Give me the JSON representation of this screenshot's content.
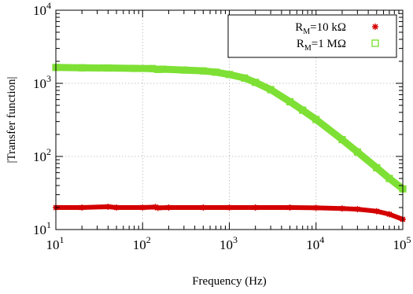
{
  "chart_data": {
    "type": "scatter",
    "xlabel": "Frequency (Hz)",
    "ylabel": "|Transfer function|",
    "xscale": "log",
    "yscale": "log",
    "xlim": [
      10,
      100000
    ],
    "ylim": [
      10,
      10000
    ],
    "grid": true,
    "legend_position": "top-right",
    "x_ticks": [
      {
        "base": "10",
        "exp": "1"
      },
      {
        "base": "10",
        "exp": "2"
      },
      {
        "base": "10",
        "exp": "3"
      },
      {
        "base": "10",
        "exp": "4"
      },
      {
        "base": "10",
        "exp": "5"
      }
    ],
    "y_ticks": [
      {
        "base": "10",
        "exp": "1"
      },
      {
        "base": "10",
        "exp": "2"
      },
      {
        "base": "10",
        "exp": "3"
      },
      {
        "base": "10",
        "exp": "4"
      }
    ],
    "series": [
      {
        "name_main": "R",
        "name_sub": "M",
        "name_rest": "=10 kΩ",
        "color": "#d40000",
        "marker": "asterisk",
        "x": [
          10,
          20,
          40,
          50,
          100,
          140,
          150,
          200,
          500,
          1000,
          2000,
          5000,
          10000,
          20000,
          30000,
          50000,
          70000,
          100000
        ],
        "y": [
          20,
          20,
          20.5,
          20,
          20,
          20.3,
          19.8,
          20,
          20,
          20,
          20,
          20,
          19.8,
          19.4,
          19,
          17.8,
          16.2,
          13.8
        ]
      },
      {
        "name_main": "R",
        "name_sub": "M",
        "name_rest": "=1 MΩ",
        "color": "#7ee035",
        "marker": "square",
        "x": [
          10,
          20,
          40,
          80,
          130,
          150,
          170,
          300,
          500,
          700,
          1000,
          1500,
          2000,
          3000,
          5000,
          7000,
          10000,
          20000,
          30000,
          50000,
          70000,
          100000
        ],
        "y": [
          1650,
          1630,
          1620,
          1600,
          1590,
          1550,
          1560,
          1520,
          1480,
          1420,
          1320,
          1180,
          1030,
          820,
          560,
          430,
          320,
          170,
          115,
          70,
          50,
          36
        ]
      }
    ]
  }
}
